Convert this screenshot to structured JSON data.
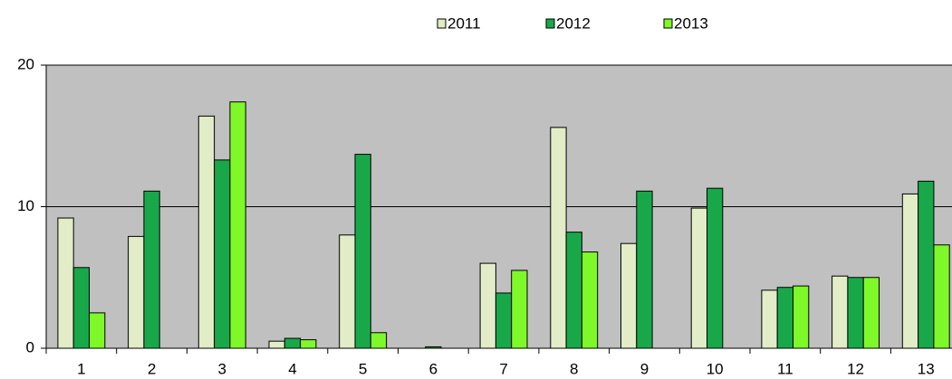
{
  "chart_data": {
    "type": "bar",
    "categories": [
      "1",
      "2",
      "3",
      "4",
      "5",
      "6",
      "7",
      "8",
      "9",
      "10",
      "11",
      "12",
      "13"
    ],
    "series": [
      {
        "name": "2011",
        "color": "#e2ecc6",
        "values": [
          9.2,
          7.9,
          16.4,
          0.5,
          8.0,
          null,
          6.0,
          15.6,
          7.4,
          9.9,
          4.1,
          5.1,
          10.9
        ]
      },
      {
        "name": "2012",
        "color": "#18a84a",
        "values": [
          5.7,
          11.1,
          13.3,
          0.7,
          13.7,
          0.1,
          3.9,
          8.2,
          11.1,
          11.3,
          4.3,
          5.0,
          11.8
        ]
      },
      {
        "name": "2013",
        "color": "#7ff82a",
        "values": [
          2.5,
          null,
          17.4,
          0.6,
          1.1,
          null,
          5.5,
          6.8,
          null,
          null,
          4.4,
          5.0,
          7.3
        ]
      }
    ],
    "ylim": [
      0,
      20
    ],
    "yticks": [
      0,
      10,
      20
    ],
    "grid": true,
    "legend": "top"
  }
}
